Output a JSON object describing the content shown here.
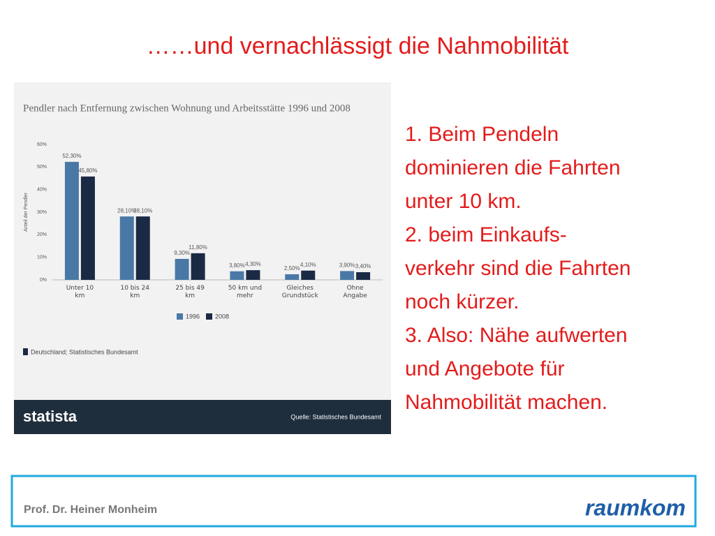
{
  "slide_title": "……und vernachlässigt die Nahmobilität",
  "points": [
    "1. Beim Pendeln",
    "dominieren die Fahrten",
    "unter 10 km.",
    "2. beim Einkaufs-",
    "verkehr sind die Fahrten",
    "noch kürzer.",
    "3. Also: Nähe aufwerten",
    "und Angebote für",
    "Nahmobilität machen."
  ],
  "footer": {
    "author": "Prof. Dr. Heiner Monheim",
    "logo": "raumkom"
  },
  "chart_data": {
    "type": "bar",
    "title": "Pendler nach Entfernung zwischen Wohnung und Arbeitsstätte 1996 und 2008",
    "y_label": "Anteil der Pendler",
    "categories": [
      "Unter 10\nkm",
      "10 bis 24\nkm",
      "25 bis 49\nkm",
      "50 km und\nmehr",
      "Gleiches\nGrundstück",
      "Ohne\nAngabe"
    ],
    "series": [
      {
        "name": "1996",
        "color": "#4a78a6",
        "values": [
          52.3,
          28.1,
          9.3,
          3.8,
          2.5,
          3.9
        ],
        "value_labels": [
          "52,30%",
          "28,10%",
          "9,30%",
          "3,80%",
          "2,50%",
          "3,90%"
        ]
      },
      {
        "name": "2008",
        "color": "#1b2a44",
        "values": [
          45.8,
          28.1,
          11.8,
          4.3,
          4.1,
          3.4
        ],
        "value_labels": [
          "45,80%",
          "28,10%",
          "11,80%",
          "4,30%",
          "4,10%",
          "3,40%"
        ]
      }
    ],
    "ylim": [
      0,
      60
    ],
    "yticks": [
      {
        "value": 0,
        "label": "0%"
      },
      {
        "value": 10,
        "label": "10%"
      },
      {
        "value": 20,
        "label": "20%"
      },
      {
        "value": 30,
        "label": "30%"
      },
      {
        "value": 40,
        "label": "40%"
      },
      {
        "value": 50,
        "label": "50%"
      },
      {
        "value": 60,
        "label": "60%"
      }
    ],
    "grid": false,
    "source": "Deutschland; Statistisches Bundesamt",
    "brand": "statista",
    "credit": "Quelle: Statistisches Bundesamt"
  }
}
